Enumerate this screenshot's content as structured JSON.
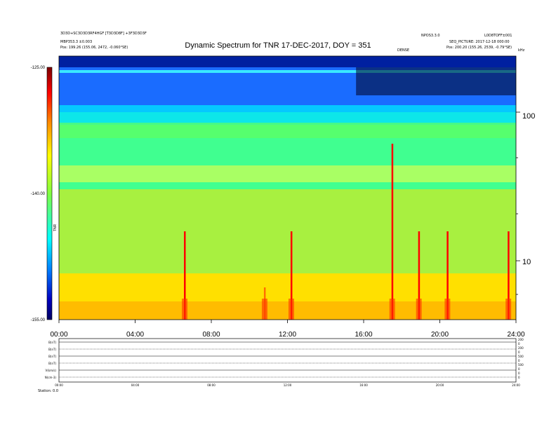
{
  "header": {
    "top_left_line1": "3D3D+SC3D3D3RF4HGF [T3D3D8F] +3F3D3D3F",
    "top_left_line2": "MBP353.3 ±0.003",
    "top_left_line3": "Pos: 199.26 (155.06, 2472, -0.060°SE)",
    "top_right_line1": "NPOS3.3.0",
    "top_right_line2": "L0D8TOFF±001",
    "top_right_line3": "SEQ_PICTURE: 2017-12-18 000:00",
    "top_right_line4": "Pos: 200.20 (155.26, 2539, -0.79°SE)",
    "mid_mark": "DENSE",
    "right_corner": "kHz",
    "footer_label": "Station: 0.0"
  },
  "colors": {
    "background": "#ffffff",
    "colorbar": [
      "#7a0000",
      "#ff0000",
      "#ff8c00",
      "#ffff00",
      "#80ff40",
      "#00ffff",
      "#0080ff",
      "#0000c0",
      "#000060"
    ]
  },
  "chart_data": [
    {
      "type": "heatmap",
      "title": "Dynamic Spectrum for TNR 17-DEC-2017, DOY = 351",
      "x_ticks": [
        "00:00",
        "04:00",
        "08:00",
        "12:00",
        "16:00",
        "20:00",
        "24:00"
      ],
      "x_range": [
        0,
        24
      ],
      "y_scale": "log",
      "y_ticks": [
        "100",
        "10"
      ],
      "colorbar_label": "TNR",
      "colorbar_ticks": [
        "-125.00",
        "-140.00",
        "-155.00"
      ],
      "colorbar_range": [
        -155,
        -125
      ],
      "bands": [
        {
          "freq": "top",
          "level": -128
        },
        {
          "freq": "100-150",
          "level": -133
        },
        {
          "freq": "40-100",
          "level": -139
        },
        {
          "freq": "10-40",
          "level": -144
        },
        {
          "freq": "5-10",
          "level": -150
        }
      ],
      "bursts": [
        {
          "time": 6.6,
          "level": -125
        },
        {
          "time": 10.8,
          "level": -146
        },
        {
          "time": 12.2,
          "level": -127
        },
        {
          "time": 17.5,
          "level": -125
        },
        {
          "time": 18.9,
          "level": -128
        },
        {
          "time": 20.4,
          "level": -128
        },
        {
          "time": 23.6,
          "level": -128
        }
      ]
    },
    {
      "type": "line",
      "panel": "auxiliary",
      "x_ticks": [
        "00:00",
        "04:00",
        "08:00",
        "12:00",
        "16:00",
        "20:00",
        "24:00"
      ],
      "row_labels": [
        "B(nT)",
        "B(nT)",
        "B(nT)",
        "B(nT)",
        "V(km/s)",
        "N(cm-3)"
      ],
      "right_labels": [
        "200",
        "0",
        "200",
        "0",
        "500",
        "0",
        "500",
        "0",
        "0",
        "0"
      ]
    }
  ]
}
